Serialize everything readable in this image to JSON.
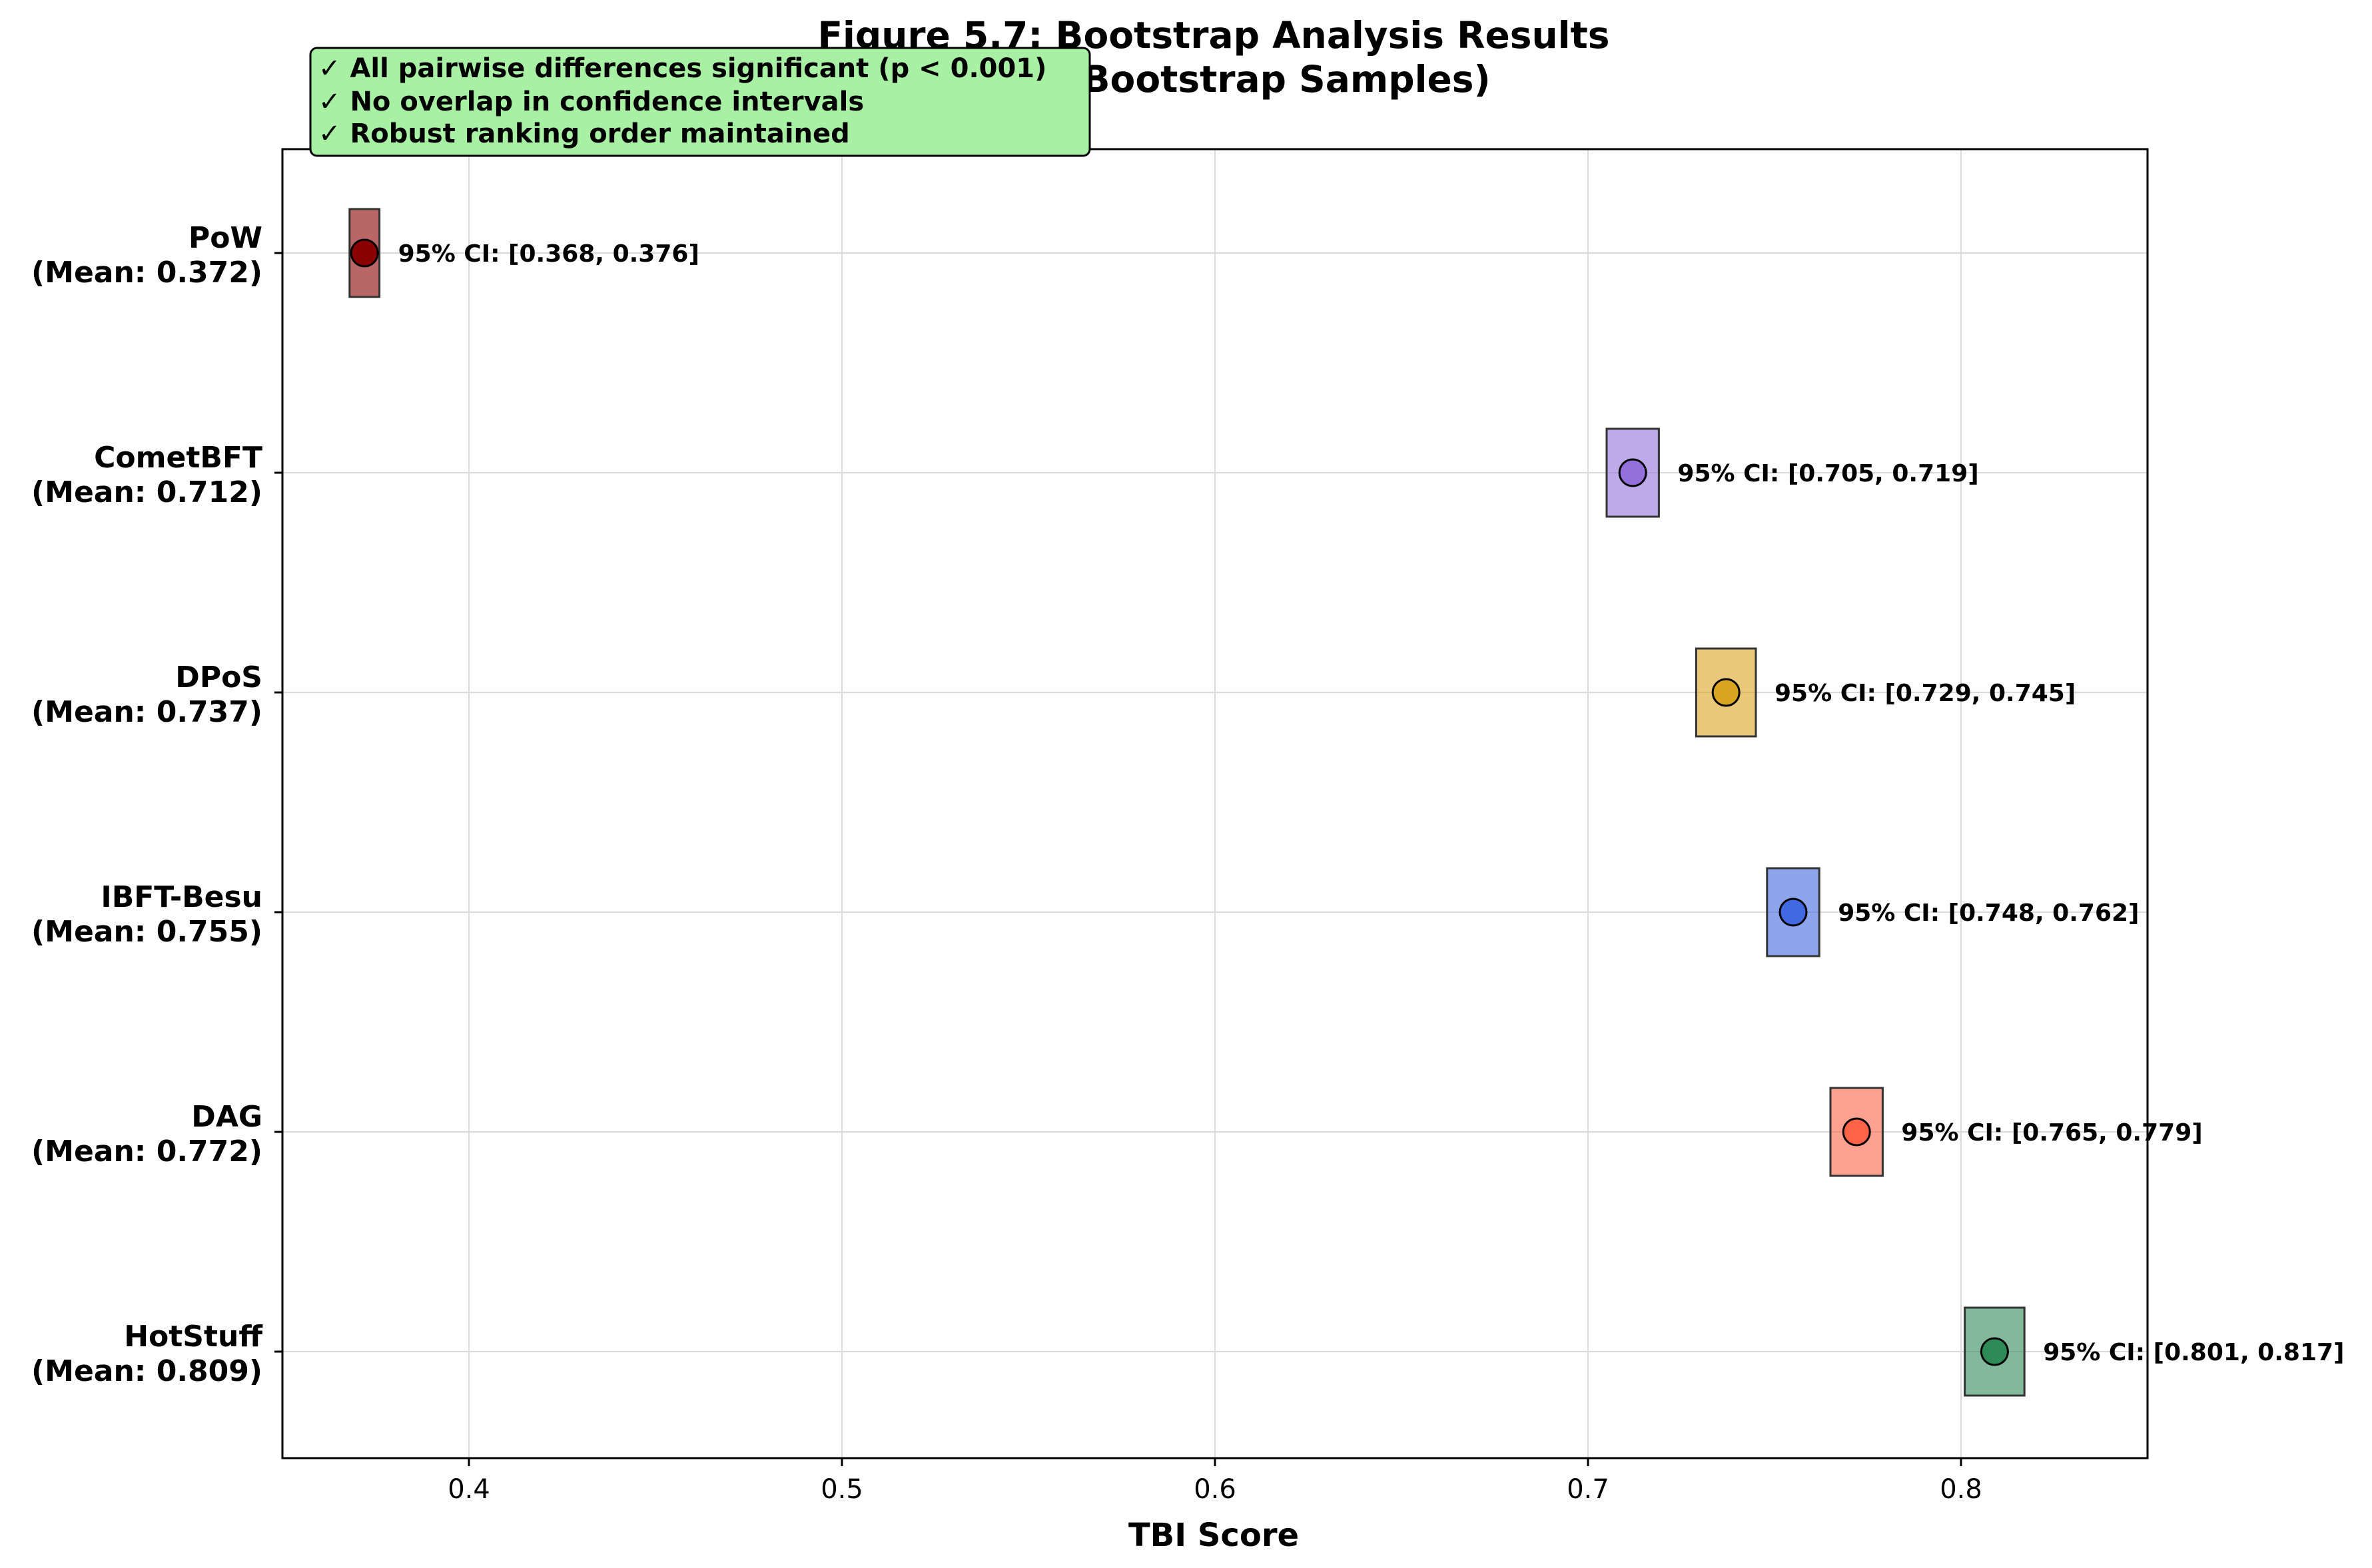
{
  "chart_data": {
    "type": "interval",
    "title": "Figure 5.7: Bootstrap Analysis Results",
    "subtitle": "(1,000 Bootstrap Samples)",
    "xlabel": "TBI Score",
    "ylabel": "",
    "xlim": [
      0.35,
      0.85
    ],
    "xticks": [
      "0.4",
      "0.5",
      "0.6",
      "0.7",
      "0.8"
    ],
    "grid": true,
    "series": [
      {
        "name": "PoW",
        "mean_label": "(Mean: 0.372)",
        "mean": 0.372,
        "ci_low": 0.368,
        "ci_high": 0.376,
        "ci_label": "95% CI: [0.368, 0.376]",
        "color": "#8B0000"
      },
      {
        "name": "CometBFT",
        "mean_label": "(Mean: 0.712)",
        "mean": 0.712,
        "ci_low": 0.705,
        "ci_high": 0.719,
        "ci_label": "95% CI: [0.705, 0.719]",
        "color": "#9370DB"
      },
      {
        "name": "DPoS",
        "mean_label": "(Mean: 0.737)",
        "mean": 0.737,
        "ci_low": 0.729,
        "ci_high": 0.745,
        "ci_label": "95% CI: [0.729, 0.745]",
        "color": "#DAA520"
      },
      {
        "name": "IBFT-Besu",
        "mean_label": "(Mean: 0.755)",
        "mean": 0.755,
        "ci_low": 0.748,
        "ci_high": 0.762,
        "ci_label": "95% CI: [0.748, 0.762]",
        "color": "#4169E1"
      },
      {
        "name": "DAG",
        "mean_label": "(Mean: 0.772)",
        "mean": 0.772,
        "ci_low": 0.765,
        "ci_high": 0.779,
        "ci_label": "95% CI: [0.765, 0.779]",
        "color": "#FF6347"
      },
      {
        "name": "HotStuff",
        "mean_label": "(Mean: 0.809)",
        "mean": 0.809,
        "ci_low": 0.801,
        "ci_high": 0.817,
        "ci_label": "95% CI: [0.801, 0.817]",
        "color": "#2E8B57"
      }
    ]
  },
  "annotation": {
    "lines": [
      "✓ All pairwise differences significant (p < 0.001)",
      "✓ No overlap in confidence intervals",
      "✓ Robust ranking order maintained"
    ],
    "bg_color": "#A8F0A4"
  }
}
